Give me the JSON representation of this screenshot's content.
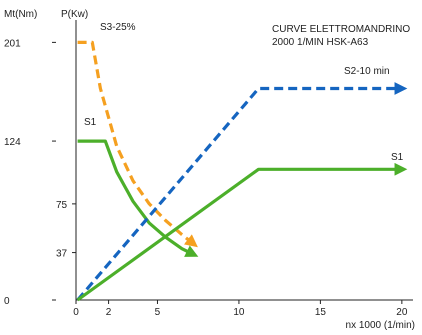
{
  "chart_data": {
    "type": "line",
    "title_lines": [
      "CURVE ELETTROMANDRINO",
      "2000 1/MIN HSK-A63"
    ],
    "torque_axis_label": "Mt(Nm)",
    "power_axis_label": "P(Kw)",
    "xlabel": "nx 1000 (1/min)",
    "xlim": [
      0,
      20.5
    ],
    "x_ticks": [
      0,
      2,
      5,
      10,
      15,
      20
    ],
    "ylim": [
      0,
      213
    ],
    "torque_ticks": [
      {
        "label": "201",
        "value": 201
      },
      {
        "label": "124",
        "value": 124
      },
      {
        "label": "0",
        "value": 0
      }
    ],
    "power_ticks": [
      {
        "label": "75",
        "value": 75
      },
      {
        "label": "37",
        "value": 37
      }
    ],
    "grid": false,
    "series": [
      {
        "name": "S3-25%",
        "axis": "torque",
        "color": "#f5a020",
        "style": "dashed",
        "points": [
          [
            0.1,
            201
          ],
          [
            1.0,
            201
          ],
          [
            1.5,
            165
          ],
          [
            2.5,
            120
          ],
          [
            3.5,
            93
          ],
          [
            4.5,
            75
          ],
          [
            5.5,
            62
          ],
          [
            6.5,
            51
          ],
          [
            7.3,
            43
          ]
        ]
      },
      {
        "name": "S1",
        "axis": "torque",
        "color": "#4caf2a",
        "style": "solid",
        "points": [
          [
            0.1,
            124
          ],
          [
            1.8,
            124
          ],
          [
            2.5,
            100
          ],
          [
            3.5,
            77
          ],
          [
            4.5,
            60
          ],
          [
            5.5,
            49
          ],
          [
            6.5,
            40
          ],
          [
            7.3,
            35
          ]
        ]
      },
      {
        "name": "S2-10 min",
        "axis": "power",
        "color": "#1565c0",
        "style": "dashed",
        "points": [
          [
            0.1,
            0
          ],
          [
            11.2,
            165
          ],
          [
            20.1,
            165
          ]
        ]
      },
      {
        "name": "S1",
        "axis": "power",
        "color": "#4caf2a",
        "style": "solid",
        "points": [
          [
            0.1,
            0
          ],
          [
            11.2,
            102
          ],
          [
            20.1,
            102
          ]
        ]
      }
    ],
    "series_labels": [
      {
        "text": "S3-25%",
        "color": "#222222"
      },
      {
        "text": "S1",
        "color": "#222222"
      },
      {
        "text": "S2-10 min",
        "color": "#222222"
      },
      {
        "text": "S1",
        "color": "#222222"
      }
    ]
  }
}
